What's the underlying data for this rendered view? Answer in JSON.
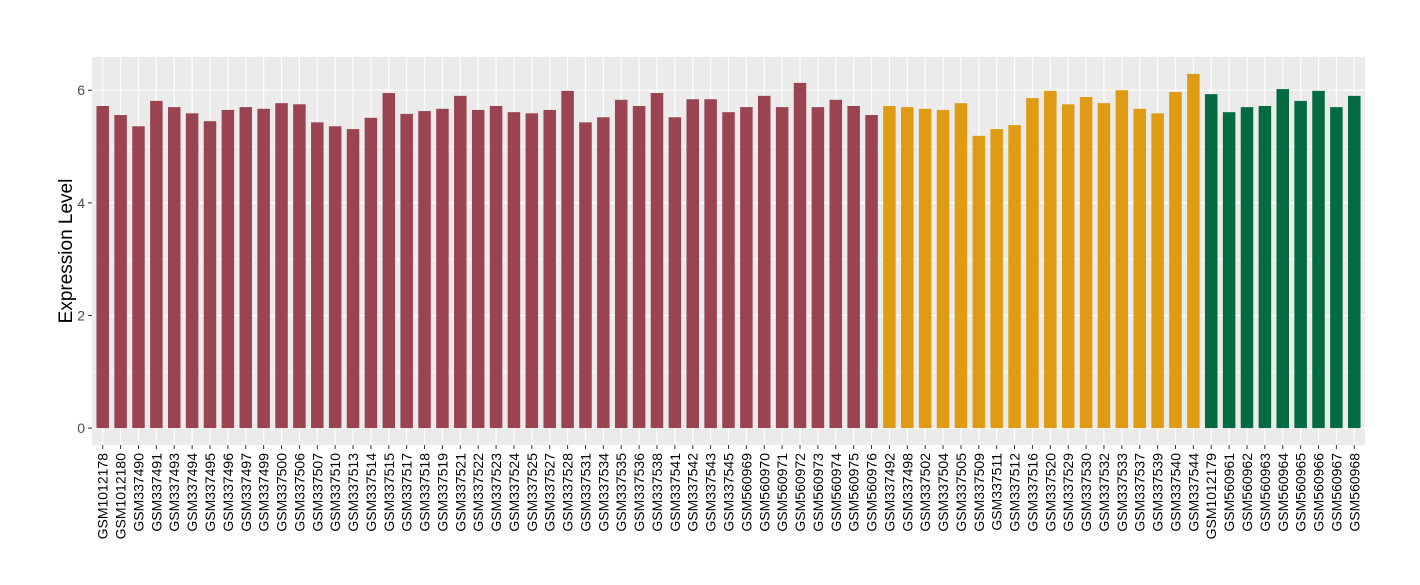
{
  "chart_data": {
    "type": "bar",
    "title": "",
    "xlabel": "",
    "ylabel": "Expression Level",
    "ylim": [
      -0.3,
      6.59
    ],
    "yticks": [
      0,
      2,
      4,
      6
    ],
    "grid": true,
    "legend": "none",
    "panel_background": "#EBEBEB",
    "groups": [
      {
        "color": "#9B4451",
        "categories": [
          "GSM1012178",
          "GSM1012180",
          "GSM337490",
          "GSM337491",
          "GSM337493",
          "GSM337494",
          "GSM337495",
          "GSM337496",
          "GSM337497",
          "GSM337499",
          "GSM337500",
          "GSM337506",
          "GSM337507",
          "GSM337510",
          "GSM337513",
          "GSM337514",
          "GSM337515",
          "GSM337517",
          "GSM337518",
          "GSM337519",
          "GSM337521",
          "GSM337522",
          "GSM337523",
          "GSM337524",
          "GSM337525",
          "GSM337527",
          "GSM337528",
          "GSM337531",
          "GSM337534",
          "GSM337535",
          "GSM337536",
          "GSM337538",
          "GSM337541",
          "GSM337542",
          "GSM337543",
          "GSM337545",
          "GSM560969",
          "GSM560970",
          "GSM560971",
          "GSM560972",
          "GSM560973",
          "GSM560974",
          "GSM560975",
          "GSM560976"
        ],
        "values": [
          5.72,
          5.56,
          5.36,
          5.81,
          5.7,
          5.59,
          5.45,
          5.65,
          5.7,
          5.67,
          5.77,
          5.75,
          5.43,
          5.36,
          5.31,
          5.51,
          5.95,
          5.58,
          5.63,
          5.67,
          5.9,
          5.65,
          5.72,
          5.61,
          5.59,
          5.65,
          5.99,
          5.43,
          5.52,
          5.83,
          5.72,
          5.95,
          5.52,
          5.84,
          5.84,
          5.61,
          5.7,
          5.9,
          5.7,
          6.13,
          5.7,
          5.83,
          5.72,
          5.56
        ]
      },
      {
        "color": "#E09B14",
        "categories": [
          "GSM337492",
          "GSM337498",
          "GSM337502",
          "GSM337504",
          "GSM337505",
          "GSM337509",
          "GSM337511",
          "GSM337512",
          "GSM337516",
          "GSM337520",
          "GSM337529",
          "GSM337530",
          "GSM337532",
          "GSM337533",
          "GSM337537",
          "GSM337539",
          "GSM337540",
          "GSM337544"
        ],
        "values": [
          5.72,
          5.7,
          5.67,
          5.65,
          5.77,
          5.19,
          5.31,
          5.38,
          5.86,
          5.99,
          5.75,
          5.88,
          5.77,
          6.0,
          5.67,
          5.59,
          5.97,
          6.29
        ]
      },
      {
        "color": "#036A42",
        "categories": [
          "GSM1012179",
          "GSM560961",
          "GSM560962",
          "GSM560963",
          "GSM560964",
          "GSM560965",
          "GSM560966",
          "GSM560967",
          "GSM560968"
        ],
        "values": [
          5.93,
          5.61,
          5.7,
          5.72,
          6.02,
          5.81,
          5.99,
          5.7,
          5.9
        ]
      }
    ]
  }
}
